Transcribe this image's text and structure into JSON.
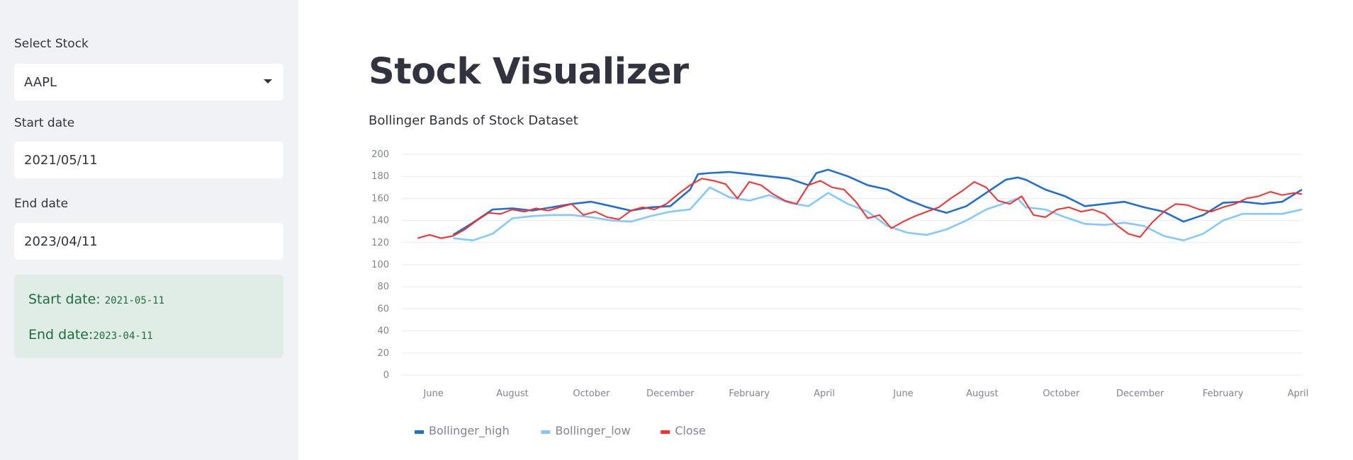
{
  "sidebar": {
    "stock_label": "Select Stock",
    "stock_value": "AAPL",
    "start_label": "Start date",
    "start_value": "2021/05/11",
    "end_label": "End date",
    "end_value": "2023/04/11",
    "info": {
      "start_text": "Start date: ",
      "start_code": "2021-05-11",
      "end_text": "End date:",
      "end_code": "2023-04-11"
    }
  },
  "main": {
    "title": "Stock Visualizer",
    "subtitle": "Bollinger Bands of Stock Dataset"
  },
  "chart_data": {
    "type": "line",
    "ylim": [
      0,
      200
    ],
    "yticks": [
      0,
      20,
      40,
      60,
      80,
      100,
      120,
      140,
      160,
      180,
      200
    ],
    "x_tick_labels": [
      "June",
      "August",
      "October",
      "December",
      "February",
      "April",
      "June",
      "August",
      "October",
      "December",
      "February",
      "April"
    ],
    "x_tick_positions": [
      0.4,
      2.4,
      4.4,
      6.4,
      8.4,
      10.3,
      12.3,
      14.3,
      16.3,
      18.3,
      20.4,
      22.3
    ],
    "x_range": [
      -0.4,
      22.4
    ],
    "grid": true,
    "legend_position": "bottom-left",
    "series": [
      {
        "name": "Bollinger_high",
        "color": "#1f6fd1",
        "x": [
          0.9,
          1.4,
          1.9,
          2.4,
          2.9,
          3.4,
          3.9,
          4.4,
          4.9,
          5.4,
          5.9,
          6.4,
          6.9,
          7.1,
          7.4,
          7.9,
          8.4,
          8.9,
          9.4,
          9.9,
          10.1,
          10.4,
          10.9,
          11.4,
          11.9,
          12.4,
          12.9,
          13.4,
          13.9,
          14.4,
          14.9,
          15.2,
          15.4,
          15.9,
          16.4,
          16.9,
          17.4,
          17.9,
          18.4,
          18.9,
          19.4,
          19.9,
          20.4,
          20.9,
          21.4,
          21.9,
          22.4
        ],
        "values": [
          127,
          138,
          150,
          151,
          149,
          152,
          155,
          157,
          153,
          149,
          152,
          153,
          168,
          182,
          183,
          184,
          182,
          180,
          178,
          172,
          183,
          186,
          180,
          172,
          168,
          159,
          152,
          147,
          153,
          165,
          177,
          179,
          177,
          168,
          162,
          153,
          155,
          157,
          152,
          148,
          139,
          145,
          156,
          157,
          155,
          157,
          168
        ]
      },
      {
        "name": "Bollinger_low",
        "color": "#83c9ff",
        "x": [
          0.9,
          1.4,
          1.9,
          2.4,
          2.9,
          3.4,
          3.9,
          4.4,
          4.9,
          5.4,
          5.9,
          6.4,
          6.9,
          7.4,
          7.9,
          8.4,
          8.9,
          9.4,
          9.9,
          10.4,
          10.9,
          11.4,
          11.9,
          12.4,
          12.9,
          13.4,
          13.9,
          14.4,
          14.9,
          15.2,
          15.4,
          15.9,
          16.4,
          16.9,
          17.4,
          17.9,
          18.4,
          18.9,
          19.4,
          19.9,
          20.4,
          20.9,
          21.4,
          21.9,
          22.4
        ],
        "values": [
          124,
          122,
          128,
          142,
          144,
          145,
          145,
          143,
          140,
          139,
          144,
          148,
          150,
          170,
          161,
          158,
          163,
          156,
          153,
          165,
          155,
          148,
          135,
          129,
          127,
          132,
          140,
          150,
          156,
          160,
          152,
          150,
          143,
          137,
          136,
          138,
          135,
          126,
          122,
          128,
          140,
          146,
          146,
          146,
          150
        ]
      },
      {
        "name": "Close",
        "color": "#ff2b2b",
        "x": [
          0.0,
          0.3,
          0.6,
          0.9,
          1.2,
          1.5,
          1.8,
          2.1,
          2.4,
          2.7,
          3.0,
          3.3,
          3.6,
          3.9,
          4.2,
          4.5,
          4.8,
          5.1,
          5.4,
          5.7,
          6.0,
          6.3,
          6.6,
          6.9,
          7.2,
          7.5,
          7.8,
          8.1,
          8.4,
          8.7,
          9.0,
          9.3,
          9.6,
          9.9,
          10.2,
          10.5,
          10.8,
          11.1,
          11.4,
          11.7,
          12.0,
          12.3,
          12.6,
          12.9,
          13.2,
          13.5,
          13.8,
          14.1,
          14.4,
          14.7,
          15.0,
          15.3,
          15.6,
          15.9,
          16.2,
          16.5,
          16.8,
          17.1,
          17.4,
          17.7,
          18.0,
          18.3,
          18.6,
          18.9,
          19.2,
          19.5,
          19.8,
          20.1,
          20.4,
          20.7,
          21.0,
          21.3,
          21.6,
          21.9,
          22.2,
          22.4
        ],
        "values": [
          124,
          127,
          124,
          126,
          132,
          140,
          147,
          146,
          150,
          148,
          151,
          149,
          152,
          155,
          145,
          148,
          143,
          141,
          149,
          152,
          150,
          155,
          164,
          172,
          178,
          176,
          173,
          160,
          175,
          172,
          164,
          158,
          155,
          172,
          176,
          170,
          168,
          157,
          142,
          145,
          133,
          139,
          144,
          148,
          152,
          160,
          167,
          175,
          170,
          158,
          155,
          162,
          145,
          143,
          150,
          152,
          148,
          150,
          146,
          136,
          128,
          125,
          138,
          148,
          155,
          154,
          150,
          148,
          152,
          155,
          160,
          162,
          166,
          163,
          165,
          164
        ]
      }
    ]
  }
}
